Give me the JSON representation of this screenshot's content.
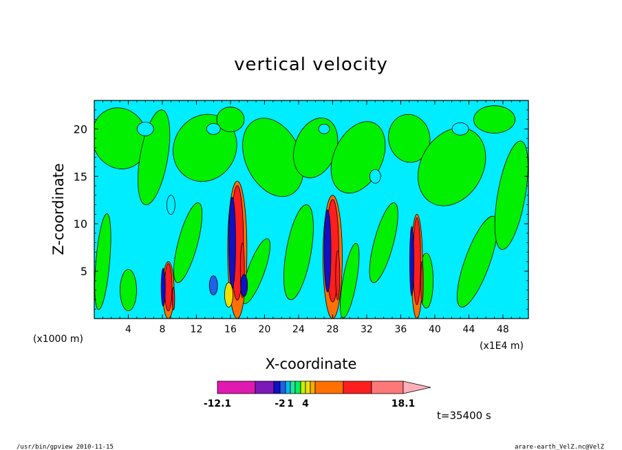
{
  "chart_data": {
    "type": "heatmap",
    "title": "vertical velocity",
    "xlabel": "X-coordinate",
    "ylabel": "Z-coordinate",
    "x_unit": "(x1000 m)",
    "x_extra_unit": "(x1E4 m)",
    "xlim": [
      0,
      51
    ],
    "ylim": [
      0,
      23
    ],
    "x_ticks": [
      4,
      8,
      12,
      16,
      20,
      24,
      28,
      32,
      36,
      40,
      44,
      48
    ],
    "y_ticks": [
      5,
      10,
      15,
      20
    ],
    "colorbar": {
      "colors": [
        "#e01ab0",
        "#7a1ab8",
        "#1010c8",
        "#1f62e8",
        "#00bbf0",
        "#1ee6a0",
        "#00f060",
        "#c8f000",
        "#f0e000",
        "#f5b000",
        "#ff7000",
        "#ff1e1e",
        "#ff7878",
        "#ffb0b8"
      ],
      "tick_labels": [
        "-12.1",
        "-2",
        "1",
        "4",
        "18.1"
      ]
    },
    "dominant_regions": {
      "background": "#00ecff",
      "positive_light": "#00f000"
    },
    "convective_cores": [
      {
        "x": 16.8,
        "z_top": 14.5
      },
      {
        "x": 28.0,
        "z_top": 13.0
      },
      {
        "x": 37.9,
        "z_top": 11.0
      },
      {
        "x": 8.7,
        "z_top": 6.0
      }
    ],
    "time_label": "t=35400 s"
  },
  "footer": {
    "left": "/usr/bin/gpview   2010-11-15",
    "right": "arare-earth_VelZ.nc@VelZ"
  }
}
